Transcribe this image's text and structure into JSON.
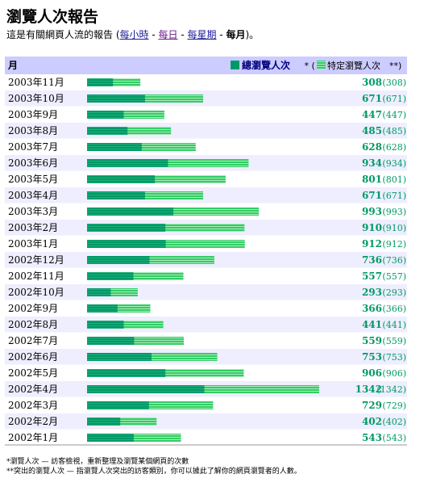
{
  "page": {
    "title": "瀏覽人次報告",
    "subtitle_prefix": "這是有關網頁人流的報告 (",
    "links": [
      "每小時",
      "每日",
      "每星期"
    ],
    "current": "每月",
    "subtitle_suffix": ")。",
    "sep": " - "
  },
  "colors": {
    "header_bg": "#ccccff",
    "row_alt_bg": "#eeeeff",
    "bar_dark": "#009966",
    "bar_light": "#33cc66",
    "value_text": "#009966"
  },
  "chart_data": {
    "type": "bar",
    "orientation": "horizontal",
    "header_left": "月",
    "legend": {
      "total_label": "總瀏覽人次",
      "mid": " * (",
      "distinct_label": "特定瀏覽人次",
      "end": "**)"
    },
    "categories": [
      "2003年11月",
      "2003年10月",
      "2003年9月",
      "2003年8月",
      "2003年7月",
      "2003年6月",
      "2003年5月",
      "2003年4月",
      "2003年3月",
      "2003年2月",
      "2003年1月",
      "2002年12月",
      "2002年11月",
      "2002年10月",
      "2002年9月",
      "2002年8月",
      "2002年7月",
      "2002年6月",
      "2002年5月",
      "2002年4月",
      "2002年3月",
      "2002年2月",
      "2002年1月"
    ],
    "series": [
      {
        "name": "總瀏覽人次",
        "values": [
          308,
          671,
          447,
          485,
          628,
          934,
          801,
          671,
          993,
          910,
          912,
          736,
          557,
          293,
          366,
          441,
          559,
          753,
          906,
          1342,
          729,
          402,
          543
        ]
      },
      {
        "name": "特定瀏覽人次",
        "values": [
          308,
          671,
          447,
          485,
          628,
          934,
          801,
          671,
          993,
          910,
          912,
          736,
          557,
          293,
          366,
          441,
          559,
          753,
          906,
          1342,
          729,
          402,
          543
        ]
      }
    ],
    "split": [
      150,
      335,
      212,
      234,
      316,
      468,
      392,
      335,
      499,
      453,
      455,
      361,
      268,
      137,
      176,
      212,
      272,
      373,
      453,
      678,
      358,
      192,
      270
    ],
    "xlim": [
      0,
      1342
    ]
  },
  "footnotes": [
    "*瀏覽人次 — 訪客檢視，重新整理及瀏覽某個網頁的次數",
    "**突出的瀏覽人次 — 指瀏覽人次突出的訪客類別，你可以據此了解你的網頁瀏覽者的人數。"
  ]
}
